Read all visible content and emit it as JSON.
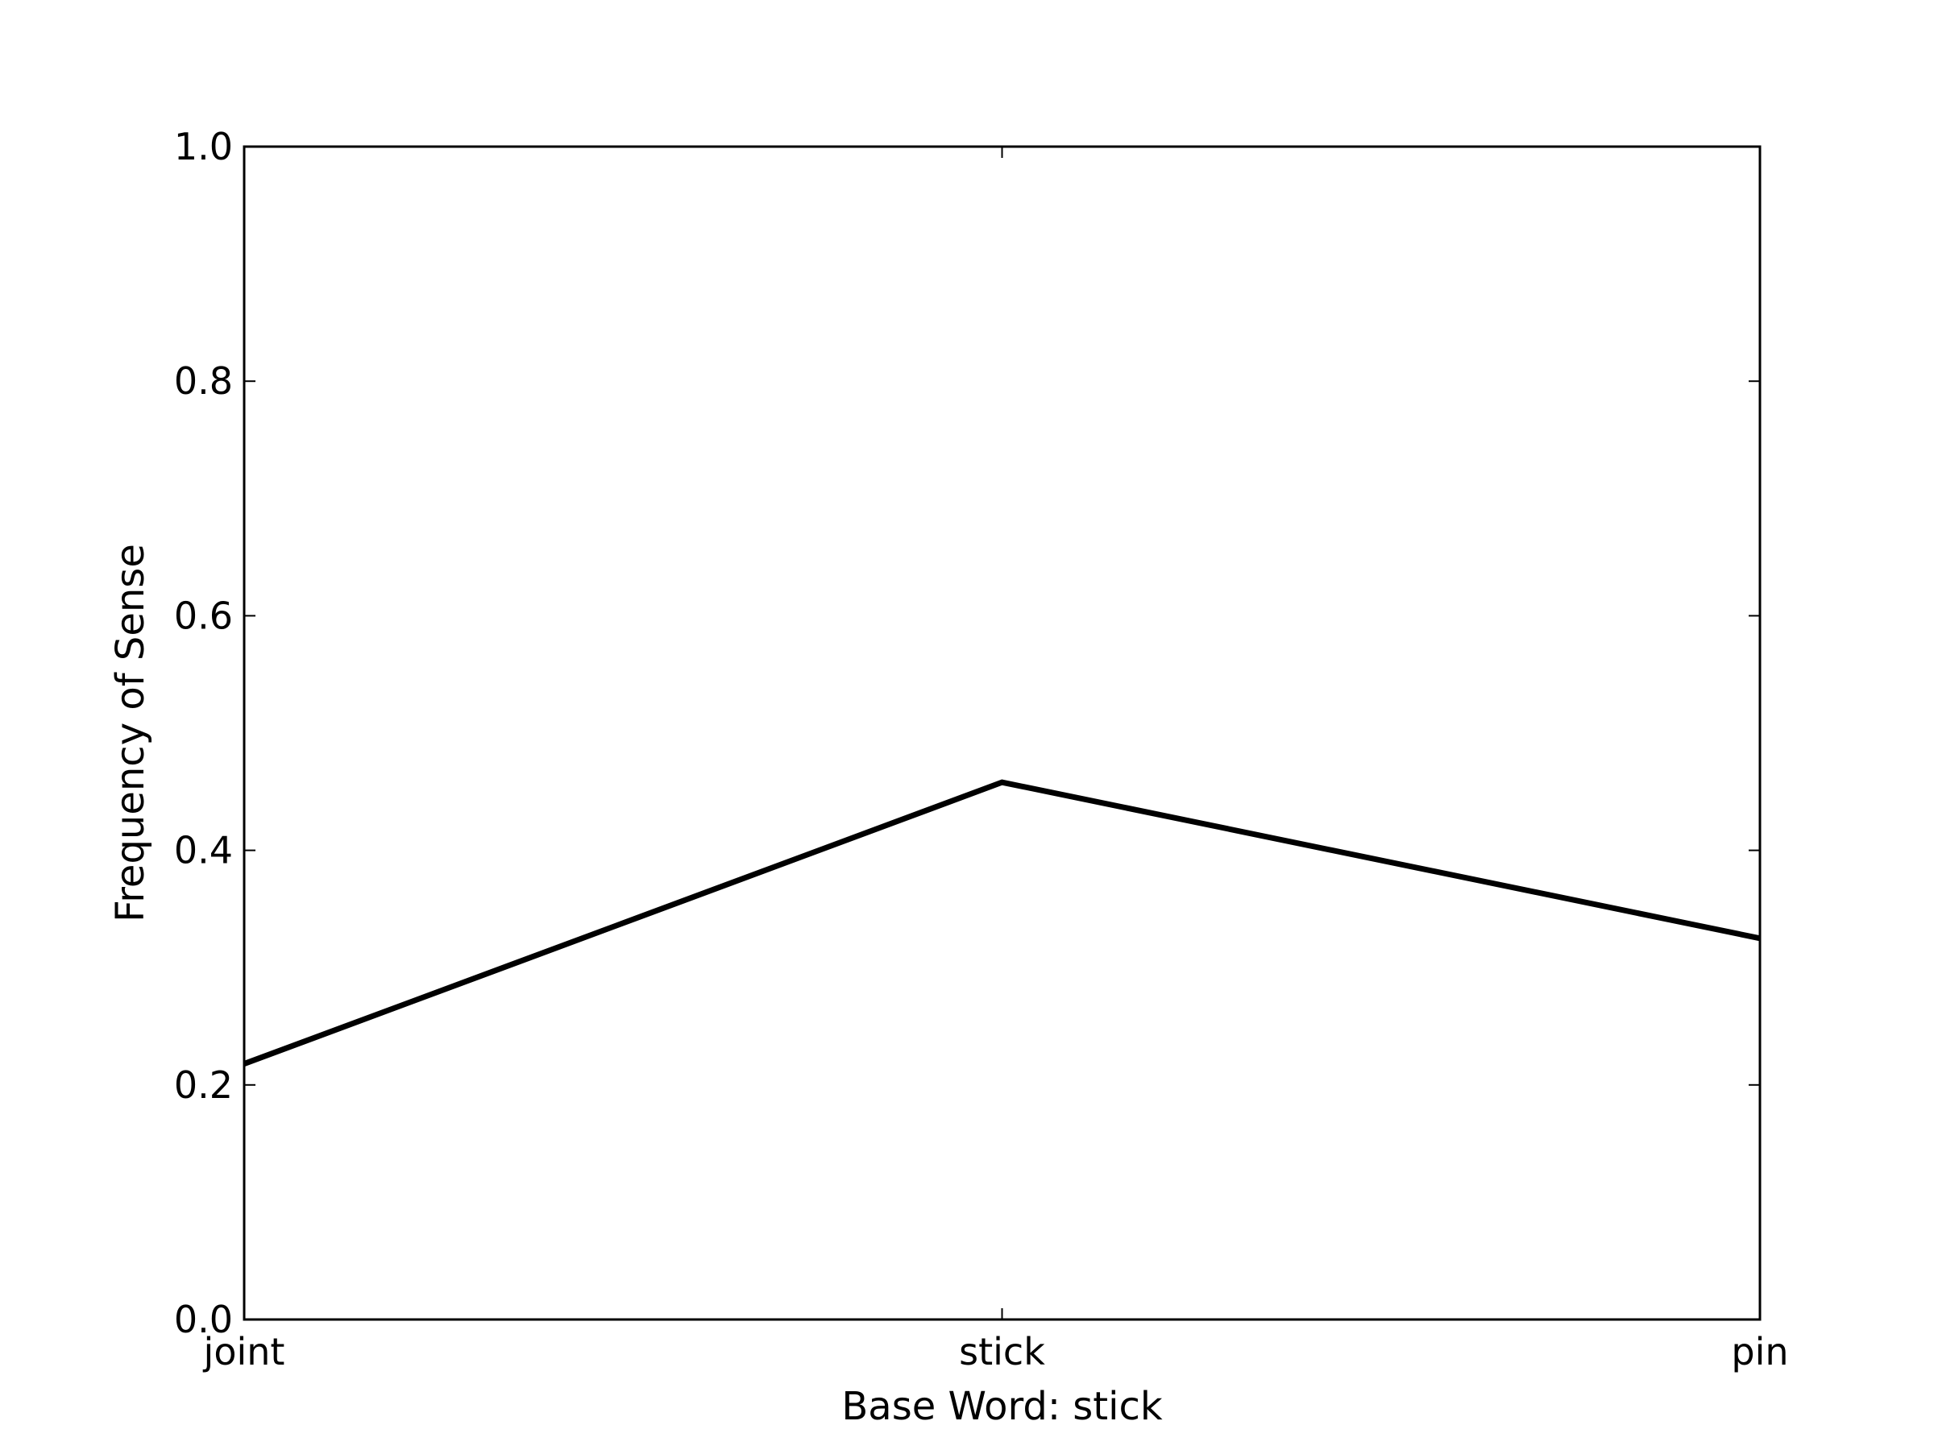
{
  "chart_data": {
    "type": "line",
    "title": "",
    "xlabel": "Base Word: stick",
    "ylabel": "Frequency of Sense",
    "categories": [
      "joint",
      "stick",
      "pin"
    ],
    "series": [
      {
        "name": "frequency",
        "values": [
          0.218,
          0.458,
          0.325
        ],
        "color": "#000000"
      }
    ],
    "ylim": [
      0.0,
      1.0
    ],
    "yticks": [
      0.0,
      0.2,
      0.4,
      0.6,
      0.8,
      1.0
    ],
    "ytick_labels": [
      "0.0",
      "0.2",
      "0.4",
      "0.6",
      "0.8",
      "1.0"
    ],
    "grid": false,
    "legend": "none"
  }
}
